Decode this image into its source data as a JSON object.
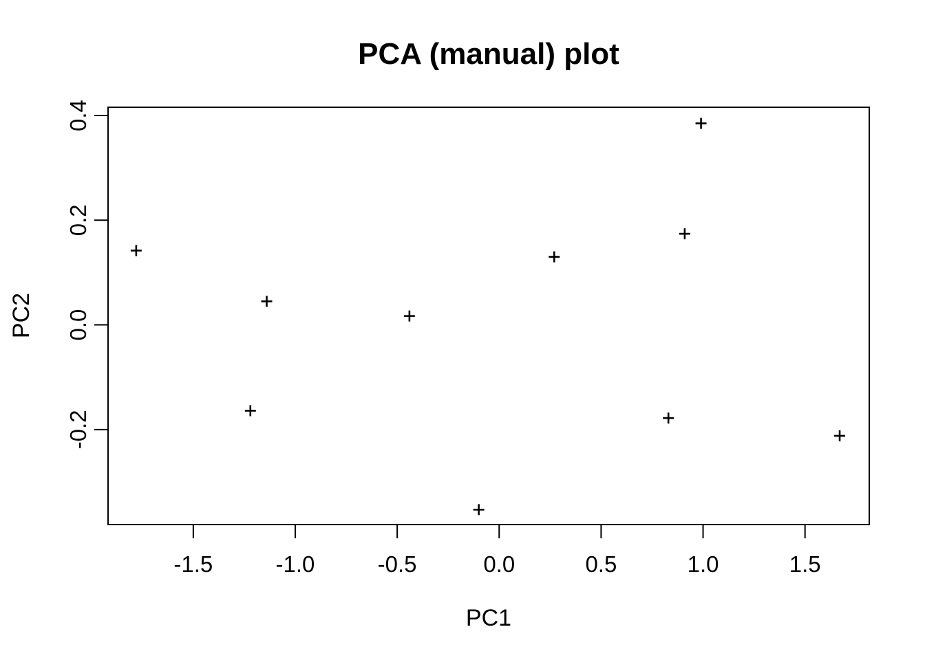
{
  "figure": {
    "background_color": "#ffffff",
    "foreground_color": "#000000"
  },
  "chart_data": {
    "type": "scatter",
    "title": "PCA (manual) plot",
    "xlabel": "PC1",
    "ylabel": "PC2",
    "marker": "plus",
    "marker_color": "#000000",
    "grid": false,
    "legend": null,
    "xlim": [
      -1.918,
      1.815
    ],
    "ylim": [
      -0.3815,
      0.4158
    ],
    "xticks": [
      -1.5,
      -1.0,
      -0.5,
      0.0,
      0.5,
      1.0,
      1.5
    ],
    "xtick_labels": [
      "-1.5",
      "-1.0",
      "-0.5",
      "0.0",
      "0.5",
      "1.0",
      "1.5"
    ],
    "yticks": [
      -0.2,
      0.0,
      0.2,
      0.4
    ],
    "ytick_labels": [
      "-0.2",
      "0.0",
      "0.2",
      "0.4"
    ],
    "points": [
      {
        "x": -1.78,
        "y": 0.142
      },
      {
        "x": -1.22,
        "y": -0.164
      },
      {
        "x": -1.14,
        "y": 0.045
      },
      {
        "x": -0.44,
        "y": 0.017
      },
      {
        "x": -0.1,
        "y": -0.353
      },
      {
        "x": 0.27,
        "y": 0.13
      },
      {
        "x": 0.83,
        "y": -0.178
      },
      {
        "x": 0.91,
        "y": 0.174
      },
      {
        "x": 0.99,
        "y": 0.385
      },
      {
        "x": 1.67,
        "y": -0.212
      }
    ]
  }
}
